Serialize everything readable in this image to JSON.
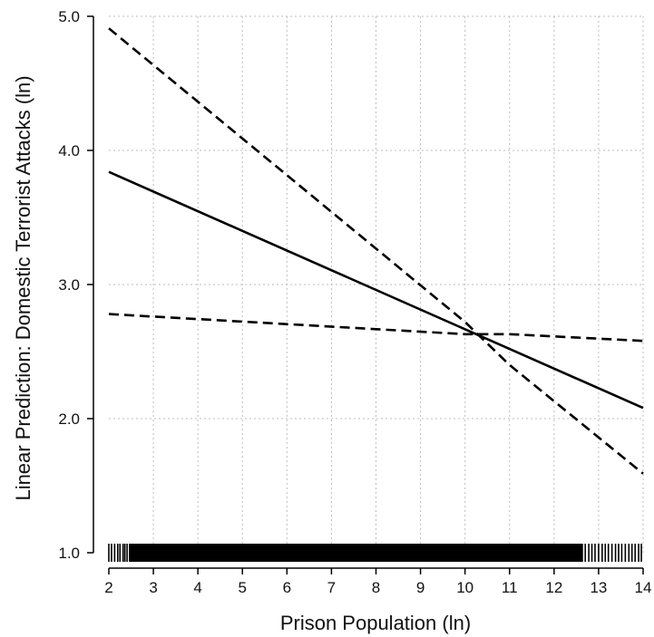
{
  "chart_data": {
    "type": "line",
    "xlabel": "Prison Population (ln)",
    "ylabel": "Linear Prediction: Domestic Terrorist Attacks (ln)",
    "xlim": [
      2,
      14
    ],
    "ylim": [
      1.0,
      5.0
    ],
    "x_ticks": [
      2,
      3,
      4,
      5,
      6,
      7,
      8,
      9,
      10,
      11,
      12,
      13,
      14
    ],
    "y_ticks": [
      1.0,
      2.0,
      3.0,
      4.0,
      5.0
    ],
    "y_tick_labels": [
      "1.0",
      "2.0",
      "3.0",
      "4.0",
      "5.0"
    ],
    "grid": true,
    "series": [
      {
        "style": "solid",
        "x": [
          2,
          14
        ],
        "y": [
          3.84,
          2.08
        ]
      },
      {
        "style": "dashed",
        "x": [
          2,
          10,
          11,
          14
        ],
        "y": [
          4.91,
          2.72,
          2.4,
          1.59
        ]
      },
      {
        "style": "dashed",
        "x": [
          2,
          10,
          11,
          14
        ],
        "y": [
          2.78,
          2.63,
          2.63,
          2.58
        ]
      }
    ],
    "rug": {
      "y": 1.0,
      "x_range": [
        2,
        14
      ],
      "dense_range": [
        2.45,
        12.65
      ],
      "sparse_left": [
        2.0,
        2.06,
        2.13,
        2.2,
        2.25,
        2.32,
        2.36,
        2.41
      ],
      "sparse_right": [
        12.7,
        12.78,
        12.85,
        12.92,
        13.0,
        13.08,
        13.15,
        13.22,
        13.3,
        13.38,
        13.45,
        13.52,
        13.6,
        13.68,
        13.75,
        13.82,
        13.9,
        13.96
      ]
    }
  }
}
